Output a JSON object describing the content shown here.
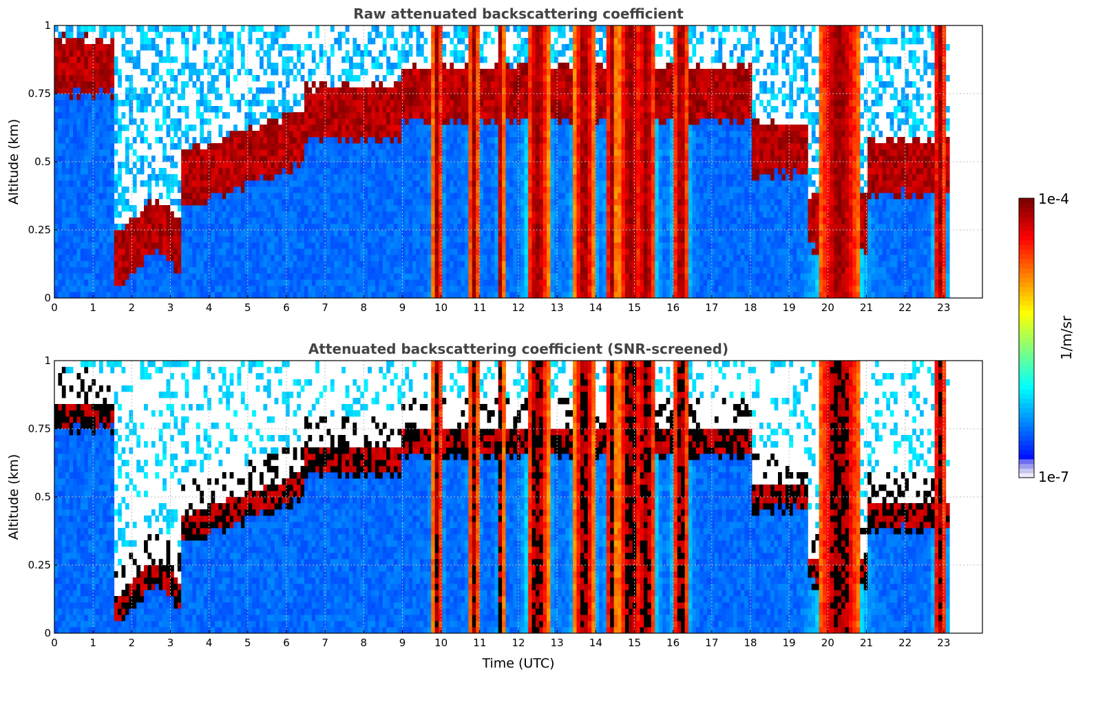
{
  "chart_data": [
    {
      "type": "heatmap",
      "title": "Raw attenuated backscattering coefficient",
      "xlabel": "",
      "ylabel": "Altitude (km)",
      "xlim": [
        0,
        24
      ],
      "ylim": [
        0,
        1
      ],
      "x_ticks": [
        "0",
        "1",
        "2",
        "3",
        "4",
        "5",
        "6",
        "7",
        "8",
        "9",
        "10",
        "11",
        "12",
        "13",
        "14",
        "15",
        "16",
        "17",
        "18",
        "19",
        "20",
        "21",
        "22",
        "23"
      ],
      "y_ticks": [
        "0",
        "0.25",
        "0.5",
        "0.75",
        "1"
      ],
      "grid": true,
      "data_end_hour": 23.15,
      "screened": false
    },
    {
      "type": "heatmap",
      "title": "Attenuated backscattering coefficient (SNR-screened)",
      "xlabel": "Time (UTC)",
      "ylabel": "Altitude (km)",
      "xlim": [
        0,
        24
      ],
      "ylim": [
        0,
        1
      ],
      "x_ticks": [
        "0",
        "1",
        "2",
        "3",
        "4",
        "5",
        "6",
        "7",
        "8",
        "9",
        "10",
        "11",
        "12",
        "13",
        "14",
        "15",
        "16",
        "17",
        "18",
        "19",
        "20",
        "21",
        "22",
        "23"
      ],
      "y_ticks": [
        "0",
        "0.25",
        "0.5",
        "0.75",
        "1"
      ],
      "grid": true,
      "data_end_hour": 23.15,
      "screened": true
    }
  ],
  "colorbar": {
    "label": "1/m/sr",
    "max_label": "1e-4",
    "min_label": "1e-7",
    "scale": "log",
    "range": [
      1e-07,
      0.0001
    ],
    "colormap": "jet"
  }
}
